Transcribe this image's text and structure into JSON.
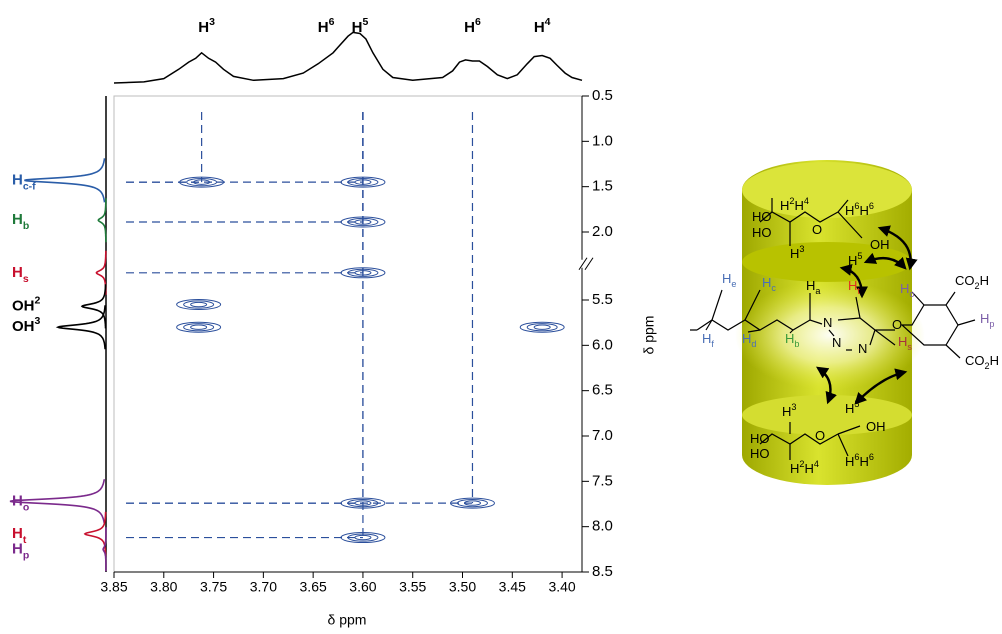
{
  "chart_data": {
    "type": "contour",
    "x_label": "δ ppm",
    "y_label": "δ ppm",
    "xlim": [
      3.85,
      3.38
    ],
    "xticks": [
      3.85,
      {
        "value": 3.8,
        "label": "3.80"
      },
      3.75,
      {
        "value": 3.7,
        "label": "3.70"
      },
      3.65,
      {
        "value": 3.6,
        "label": "3.60"
      },
      3.55,
      {
        "value": 3.5,
        "label": "3.50"
      },
      3.45,
      {
        "value": 3.4,
        "label": "3.40"
      }
    ],
    "y_segments": [
      {
        "ylim": [
          0.5,
          2.35
        ],
        "yticks": [
          0.5,
          {
            "value": 1,
            "label": "1.0"
          },
          1.5,
          {
            "value": 2,
            "label": "2.0"
          }
        ]
      },
      {
        "ylim": [
          5.1,
          8.5
        ],
        "yticks": [
          5.5,
          {
            "value": 6,
            "label": "6.0"
          },
          6.5,
          {
            "value": 7,
            "label": "7.0"
          },
          7.5,
          {
            "value": 8,
            "label": "8.0"
          },
          8.5
        ]
      }
    ],
    "axis_break": true,
    "color": "#2b4f9c",
    "peaks": [
      {
        "x": 3.762,
        "y": 1.45,
        "guide": true
      },
      {
        "x": 3.6,
        "y": 1.45,
        "guide": true
      },
      {
        "x": 3.6,
        "y": 1.89,
        "guide": true
      },
      {
        "x": 3.6,
        "y": 5.2,
        "guide": true
      },
      {
        "x": 3.765,
        "y": 5.55,
        "guide": false
      },
      {
        "x": 3.765,
        "y": 5.8,
        "guide": false
      },
      {
        "x": 3.42,
        "y": 5.8,
        "guide": false
      },
      {
        "x": 3.6,
        "y": 7.74,
        "guide": true
      },
      {
        "x": 3.49,
        "y": 7.74,
        "guide": true
      },
      {
        "x": 3.6,
        "y": 8.12,
        "guide": true
      }
    ],
    "top_projection": {
      "x": [
        3.85,
        3.82,
        3.8,
        3.785,
        3.775,
        3.768,
        3.762,
        3.755,
        3.748,
        3.74,
        3.73,
        3.71,
        3.68,
        3.66,
        3.645,
        3.63,
        3.625,
        3.615,
        3.61,
        3.603,
        3.597,
        3.59,
        3.58,
        3.57,
        3.55,
        3.52,
        3.51,
        3.503,
        3.497,
        3.49,
        3.483,
        3.475,
        3.465,
        3.455,
        3.445,
        3.435,
        3.428,
        3.42,
        3.412,
        3.405,
        3.397,
        3.39,
        3.38
      ],
      "values": [
        0,
        2,
        8,
        25,
        38,
        45,
        55,
        45,
        38,
        25,
        12,
        5,
        8,
        18,
        35,
        55,
        65,
        85,
        92,
        90,
        80,
        55,
        25,
        10,
        5,
        10,
        22,
        38,
        42,
        40,
        40,
        30,
        15,
        8,
        15,
        35,
        48,
        50,
        45,
        32,
        18,
        10,
        5
      ],
      "labels": [
        {
          "x": 3.757,
          "parts": [
            {
              "text": "H"
            },
            {
              "text": "3",
              "shift": "sup"
            }
          ]
        },
        {
          "x": 3.637,
          "parts": [
            {
              "text": "H"
            },
            {
              "text": "6",
              "shift": "sup"
            }
          ]
        },
        {
          "x": 3.603,
          "parts": [
            {
              "text": "H"
            },
            {
              "text": "5",
              "shift": "sup"
            }
          ]
        },
        {
          "x": 3.49,
          "parts": [
            {
              "text": "H"
            },
            {
              "text": "6",
              "shift": "sup"
            }
          ]
        },
        {
          "x": 3.42,
          "parts": [
            {
              "text": "H"
            },
            {
              "text": "4",
              "shift": "sup"
            }
          ]
        }
      ]
    },
    "left_projection": {
      "peaks": [
        {
          "y": 1.43,
          "height": 85,
          "color": "#2a5da8",
          "parts": [
            {
              "text": "H"
            },
            {
              "text": "c-f",
              "shift": "sub"
            }
          ]
        },
        {
          "y": 1.87,
          "height": 8,
          "color": "#1f7a3a",
          "parts": [
            {
              "text": "H"
            },
            {
              "text": "b",
              "shift": "sub"
            }
          ]
        },
        {
          "y": 5.2,
          "height": 10,
          "color": "#c8102e",
          "parts": [
            {
              "text": "H"
            },
            {
              "text": "s",
              "shift": "sub"
            }
          ]
        },
        {
          "y": 5.57,
          "height": 25,
          "color": "#000000",
          "parts": [
            {
              "text": "OH"
            },
            {
              "text": "2",
              "shift": "sup"
            }
          ]
        },
        {
          "y": 5.8,
          "height": 50,
          "color": "#000000",
          "parts": [
            {
              "text": "OH"
            },
            {
              "text": "3",
              "shift": "sup"
            }
          ]
        },
        {
          "y": 7.72,
          "height": 100,
          "color": "#7b2a8c",
          "parts": [
            {
              "text": "H"
            },
            {
              "text": "o",
              "shift": "sub"
            }
          ]
        },
        {
          "y": 8.08,
          "height": 22,
          "color": "#c8102e",
          "parts": [
            {
              "text": "H"
            },
            {
              "text": "t",
              "shift": "sub"
            }
          ]
        },
        {
          "y": 8.25,
          "height": 3,
          "color": "#7b2a8c",
          "parts": [
            {
              "text": "H"
            },
            {
              "text": "p",
              "shift": "sub"
            }
          ]
        }
      ]
    }
  },
  "diagram": {
    "labels": [
      {
        "parts": [
          {
            "text": "H"
          },
          {
            "text": "2",
            "shift": "sup"
          },
          {
            "text": "H"
          },
          {
            "text": "4",
            "shift": "sup"
          }
        ]
      },
      {
        "parts": [
          {
            "text": "H"
          },
          {
            "text": "6",
            "shift": "sup"
          },
          {
            "text": "H"
          },
          {
            "text": "6",
            "shift": "sup"
          }
        ]
      },
      {
        "parts": [
          {
            "text": "HO"
          }
        ]
      },
      {
        "parts": [
          {
            "text": "HO"
          }
        ]
      },
      {
        "parts": [
          {
            "text": "O"
          }
        ]
      },
      {
        "parts": [
          {
            "text": "OH"
          }
        ]
      },
      {
        "parts": [
          {
            "text": "H"
          },
          {
            "text": "3",
            "shift": "sup"
          }
        ]
      },
      {
        "parts": [
          {
            "text": "H"
          },
          {
            "text": "5",
            "shift": "sup"
          }
        ]
      },
      {
        "parts": [
          {
            "text": "H"
          },
          {
            "text": "o",
            "shift": "sub"
          }
        ],
        "color": "#7b5ea8"
      },
      {
        "parts": [
          {
            "text": "CO"
          },
          {
            "text": "2",
            "shift": "sub"
          },
          {
            "text": "H"
          }
        ]
      },
      {
        "parts": [
          {
            "text": "H"
          },
          {
            "text": "p",
            "shift": "sub"
          }
        ],
        "color": "#7b5ea8"
      },
      {
        "parts": [
          {
            "text": "CO"
          },
          {
            "text": "2",
            "shift": "sub"
          },
          {
            "text": "H"
          }
        ]
      },
      {
        "parts": [
          {
            "text": "H"
          },
          {
            "text": "e",
            "shift": "sub"
          }
        ],
        "color": "#4a6fb5"
      },
      {
        "parts": [
          {
            "text": "H"
          },
          {
            "text": "c",
            "shift": "sub"
          }
        ],
        "color": "#4a6fb5"
      },
      {
        "parts": [
          {
            "text": "H"
          },
          {
            "text": "a",
            "shift": "sub"
          }
        ]
      },
      {
        "parts": [
          {
            "text": "H"
          },
          {
            "text": "t",
            "shift": "sub"
          }
        ],
        "color": "#e0301e"
      },
      {
        "parts": [
          {
            "text": "H"
          },
          {
            "text": "f",
            "shift": "sub"
          }
        ],
        "color": "#4a6fb5"
      },
      {
        "parts": [
          {
            "text": "H"
          },
          {
            "text": "d",
            "shift": "sub"
          }
        ],
        "color": "#4a6fb5"
      },
      {
        "parts": [
          {
            "text": "H"
          },
          {
            "text": "b",
            "shift": "sub"
          }
        ],
        "color": "#3a9a3a"
      },
      {
        "parts": [
          {
            "text": "H"
          },
          {
            "text": "s",
            "shift": "sub"
          }
        ],
        "color": "#a8323a"
      },
      {
        "parts": [
          {
            "text": "N"
          }
        ]
      },
      {
        "parts": [
          {
            "text": "N"
          }
        ]
      },
      {
        "parts": [
          {
            "text": "N"
          }
        ]
      },
      {
        "parts": [
          {
            "text": "O"
          }
        ]
      },
      {
        "parts": [
          {
            "text": "H"
          },
          {
            "text": "5",
            "shift": "sup"
          }
        ]
      },
      {
        "parts": [
          {
            "text": "H"
          },
          {
            "text": "3",
            "shift": "sup"
          }
        ]
      },
      {
        "parts": [
          {
            "text": "OH"
          }
        ]
      },
      {
        "parts": [
          {
            "text": "HO"
          }
        ]
      },
      {
        "parts": [
          {
            "text": "HO"
          }
        ]
      },
      {
        "parts": [
          {
            "text": "O"
          }
        ]
      },
      {
        "parts": [
          {
            "text": "H"
          },
          {
            "text": "2",
            "shift": "sup"
          },
          {
            "text": "H"
          },
          {
            "text": "4",
            "shift": "sup"
          }
        ]
      },
      {
        "parts": [
          {
            "text": "H"
          },
          {
            "text": "6",
            "shift": "sup"
          },
          {
            "text": "H"
          },
          {
            "text": "6",
            "shift": "sup"
          }
        ]
      }
    ]
  }
}
